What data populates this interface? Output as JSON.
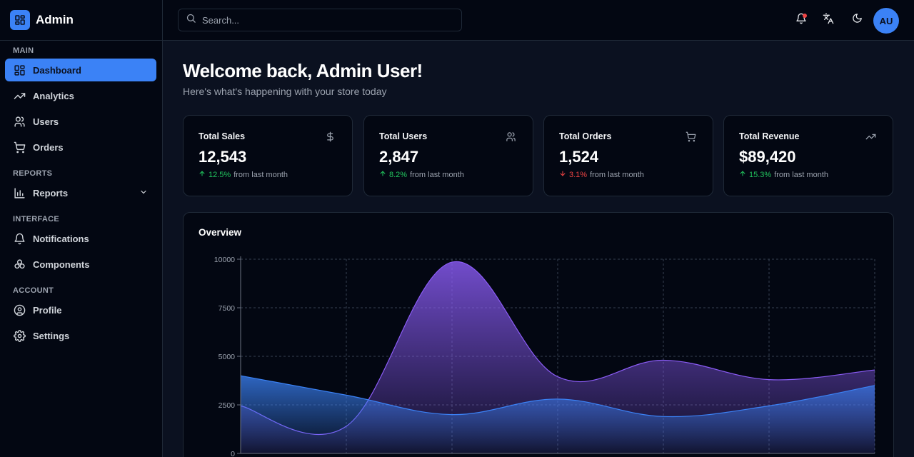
{
  "brand": {
    "name": "Admin"
  },
  "sidebar": {
    "sections": [
      {
        "label": "MAIN",
        "items": [
          {
            "label": "Dashboard",
            "icon": "dashboard-icon",
            "active": true
          },
          {
            "label": "Analytics",
            "icon": "trending-up-icon"
          },
          {
            "label": "Users",
            "icon": "users-icon"
          },
          {
            "label": "Orders",
            "icon": "cart-icon"
          }
        ]
      },
      {
        "label": "REPORTS",
        "items": [
          {
            "label": "Reports",
            "icon": "bar-chart-icon",
            "expandable": true
          }
        ]
      },
      {
        "label": "INTERFACE",
        "items": [
          {
            "label": "Notifications",
            "icon": "bell-icon"
          },
          {
            "label": "Components",
            "icon": "components-icon"
          }
        ]
      },
      {
        "label": "ACCOUNT",
        "items": [
          {
            "label": "Profile",
            "icon": "user-circle-icon"
          },
          {
            "label": "Settings",
            "icon": "gear-icon"
          }
        ]
      }
    ]
  },
  "header": {
    "search_placeholder": "Search...",
    "avatar_initials": "AU",
    "notification_dot_color": "#ef4444"
  },
  "main": {
    "welcome": "Welcome back, Admin User!",
    "subtitle": "Here's what's happening with your store today"
  },
  "stats": [
    {
      "title": "Total Sales",
      "value": "12,543",
      "change": "12.5%",
      "direction": "up",
      "suffix": "from last month",
      "icon": "dollar-icon"
    },
    {
      "title": "Total Users",
      "value": "2,847",
      "change": "8.2%",
      "direction": "up",
      "suffix": "from last month",
      "icon": "users-icon"
    },
    {
      "title": "Total Orders",
      "value": "1,524",
      "change": "3.1%",
      "direction": "down",
      "suffix": "from last month",
      "icon": "cart-icon"
    },
    {
      "title": "Total Revenue",
      "value": "$89,420",
      "change": "15.3%",
      "direction": "up",
      "suffix": "from last month",
      "icon": "trending-up-icon"
    }
  ],
  "overview": {
    "title": "Overview"
  },
  "colors": {
    "accent": "#3b82f6",
    "purple": "#8b5cf6",
    "up": "#22c55e",
    "down": "#ef4444"
  },
  "chart_data": {
    "type": "area",
    "title": "Overview",
    "ylim": [
      0,
      10000
    ],
    "yticks": [
      0,
      2500,
      5000,
      7500,
      10000
    ],
    "x": [
      0,
      1,
      2,
      3,
      4,
      5,
      6
    ],
    "grid": true,
    "series": [
      {
        "color": "#8b5cf6",
        "values": [
          2450,
          1400,
          9850,
          3950,
          4800,
          3800,
          4300
        ]
      },
      {
        "color": "#3b82f6",
        "values": [
          4000,
          3000,
          2000,
          2800,
          1900,
          2450,
          3500
        ]
      }
    ]
  }
}
